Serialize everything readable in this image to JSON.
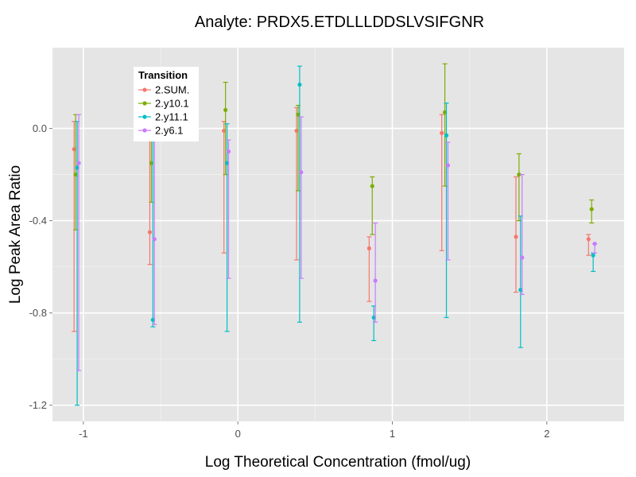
{
  "chart_data": {
    "type": "scatter",
    "title": "Analyte: PRDX5.ETDLLLDDSLVSIFGNR",
    "xlabel": "Log Theoretical Concentration (fmol/ug)",
    "ylabel": "Log Peak Area Ratio",
    "xlim": [
      -1.2,
      2.5
    ],
    "ylim": [
      -1.27,
      0.35
    ],
    "x_ticks": [
      -1,
      0,
      1,
      2
    ],
    "x_tick_labels": [
      "-1",
      "0",
      "1",
      "2"
    ],
    "y_ticks": [
      -1.2,
      -0.8,
      -0.4,
      0.0
    ],
    "y_tick_labels": [
      "-1.2",
      "-0.8",
      "-0.4",
      "0.0"
    ],
    "grid": true,
    "error_bars": true,
    "legend": {
      "title": "Transition",
      "position": "top-left inside"
    },
    "series": [
      {
        "name": "2.SUM.",
        "color": "#F8766D",
        "points": [
          {
            "x": -1.06,
            "y": -0.09,
            "lo": -0.88,
            "hi": 0.03
          },
          {
            "x": -0.57,
            "y": -0.45,
            "lo": -0.59,
            "hi": 0.01
          },
          {
            "x": -0.09,
            "y": -0.01,
            "lo": -0.54,
            "hi": 0.03
          },
          {
            "x": 0.38,
            "y": -0.01,
            "lo": -0.57,
            "hi": 0.09
          },
          {
            "x": 0.85,
            "y": -0.52,
            "lo": -0.75,
            "hi": -0.47
          },
          {
            "x": 1.32,
            "y": -0.02,
            "lo": -0.53,
            "hi": 0.06
          },
          {
            "x": 1.8,
            "y": -0.47,
            "lo": -0.71,
            "hi": -0.21
          },
          {
            "x": 2.27,
            "y": -0.48,
            "lo": -0.55,
            "hi": -0.46
          }
        ]
      },
      {
        "name": "2.y10.1",
        "color": "#7CAE00",
        "points": [
          {
            "x": -1.05,
            "y": -0.2,
            "lo": -0.44,
            "hi": 0.06
          },
          {
            "x": -0.56,
            "y": -0.15,
            "lo": -0.32,
            "hi": 0.03
          },
          {
            "x": -0.08,
            "y": 0.08,
            "lo": -0.2,
            "hi": 0.2
          },
          {
            "x": 0.39,
            "y": 0.06,
            "lo": -0.27,
            "hi": 0.1
          },
          {
            "x": 0.87,
            "y": -0.25,
            "lo": -0.46,
            "hi": -0.21
          },
          {
            "x": 1.34,
            "y": 0.07,
            "lo": -0.25,
            "hi": 0.28
          },
          {
            "x": 1.82,
            "y": -0.2,
            "lo": -0.4,
            "hi": -0.11
          },
          {
            "x": 2.29,
            "y": -0.35,
            "lo": -0.41,
            "hi": -0.31
          }
        ]
      },
      {
        "name": "2.y11.1",
        "color": "#00BFC4",
        "points": [
          {
            "x": -1.04,
            "y": -0.17,
            "lo": -1.2,
            "hi": 0.03
          },
          {
            "x": -0.55,
            "y": -0.83,
            "lo": -0.86,
            "hi": 0.02
          },
          {
            "x": -0.07,
            "y": -0.15,
            "lo": -0.88,
            "hi": 0.02
          },
          {
            "x": 0.4,
            "y": 0.19,
            "lo": -0.84,
            "hi": 0.27
          },
          {
            "x": 0.88,
            "y": -0.82,
            "lo": -0.92,
            "hi": -0.77
          },
          {
            "x": 1.35,
            "y": -0.03,
            "lo": -0.82,
            "hi": 0.11
          },
          {
            "x": 1.83,
            "y": -0.7,
            "lo": -0.95,
            "hi": -0.38
          },
          {
            "x": 2.3,
            "y": -0.55,
            "lo": -0.62,
            "hi": -0.54
          }
        ]
      },
      {
        "name": "2.y6.1",
        "color": "#C77CFF",
        "points": [
          {
            "x": -1.03,
            "y": -0.15,
            "lo": -1.05,
            "hi": 0.06
          },
          {
            "x": -0.54,
            "y": -0.48,
            "lo": -0.85,
            "hi": 0.02
          },
          {
            "x": -0.06,
            "y": -0.1,
            "lo": -0.65,
            "hi": -0.05
          },
          {
            "x": 0.41,
            "y": -0.19,
            "lo": -0.65,
            "hi": 0.05
          },
          {
            "x": 0.89,
            "y": -0.66,
            "lo": -0.84,
            "hi": -0.41
          },
          {
            "x": 1.36,
            "y": -0.16,
            "lo": -0.57,
            "hi": -0.06
          },
          {
            "x": 1.84,
            "y": -0.56,
            "lo": -0.72,
            "hi": -0.2
          },
          {
            "x": 2.31,
            "y": -0.5,
            "lo": -0.54,
            "hi": -0.5
          }
        ]
      }
    ]
  }
}
